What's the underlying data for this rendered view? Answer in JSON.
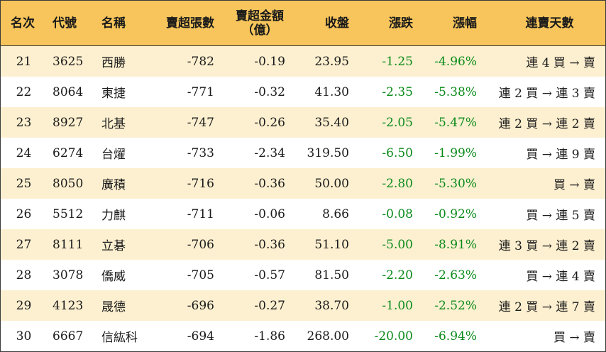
{
  "headers": {
    "rank": "名次",
    "code": "代號",
    "name": "名稱",
    "net_sell_lots": "賣超張數",
    "net_sell_amount": "賣超金額",
    "net_sell_amount_unit": "（億）",
    "close": "收盤",
    "change": "漲跌",
    "change_pct": "漲幅",
    "streak": "連賣天數"
  },
  "rows": [
    {
      "rank": "21",
      "code": "3625",
      "name": "西勝",
      "lots": "-782",
      "amount": "-0.19",
      "close": "23.95",
      "change": "-1.25",
      "pct": "-4.96%",
      "streak": "連 4 買 → 賣"
    },
    {
      "rank": "22",
      "code": "8064",
      "name": "東捷",
      "lots": "-771",
      "amount": "-0.32",
      "close": "41.30",
      "change": "-2.35",
      "pct": "-5.38%",
      "streak": "連 2 買 → 連 3 賣"
    },
    {
      "rank": "23",
      "code": "8927",
      "name": "北基",
      "lots": "-747",
      "amount": "-0.26",
      "close": "35.40",
      "change": "-2.05",
      "pct": "-5.47%",
      "streak": "連 2 買 → 連 2 賣"
    },
    {
      "rank": "24",
      "code": "6274",
      "name": "台燿",
      "lots": "-733",
      "amount": "-2.34",
      "close": "319.50",
      "change": "-6.50",
      "pct": "-1.99%",
      "streak": "買 → 連 9 賣"
    },
    {
      "rank": "25",
      "code": "8050",
      "name": "廣積",
      "lots": "-716",
      "amount": "-0.36",
      "close": "50.00",
      "change": "-2.80",
      "pct": "-5.30%",
      "streak": "買 → 賣"
    },
    {
      "rank": "26",
      "code": "5512",
      "name": "力麒",
      "lots": "-711",
      "amount": "-0.06",
      "close": "8.66",
      "change": "-0.08",
      "pct": "-0.92%",
      "streak": "買 → 連 5 賣"
    },
    {
      "rank": "27",
      "code": "8111",
      "name": "立碁",
      "lots": "-706",
      "amount": "-0.36",
      "close": "51.10",
      "change": "-5.00",
      "pct": "-8.91%",
      "streak": "連 3 買 → 連 2 賣"
    },
    {
      "rank": "28",
      "code": "3078",
      "name": "僑威",
      "lots": "-705",
      "amount": "-0.57",
      "close": "81.50",
      "change": "-2.20",
      "pct": "-2.63%",
      "streak": "買 → 連 4 賣"
    },
    {
      "rank": "29",
      "code": "4123",
      "name": "晟德",
      "lots": "-696",
      "amount": "-0.27",
      "close": "38.70",
      "change": "-1.00",
      "pct": "-2.52%",
      "streak": "連 2 買 → 連 7 賣"
    },
    {
      "rank": "30",
      "code": "6667",
      "name": "信紘科",
      "lots": "-694",
      "amount": "-1.86",
      "close": "268.00",
      "change": "-20.00",
      "pct": "-6.94%",
      "streak": "買 → 賣"
    }
  ],
  "colors": {
    "header_bg": "#f7c55b",
    "odd_row_bg": "#fdf0d0",
    "negative_change": "#0a8a1a"
  }
}
